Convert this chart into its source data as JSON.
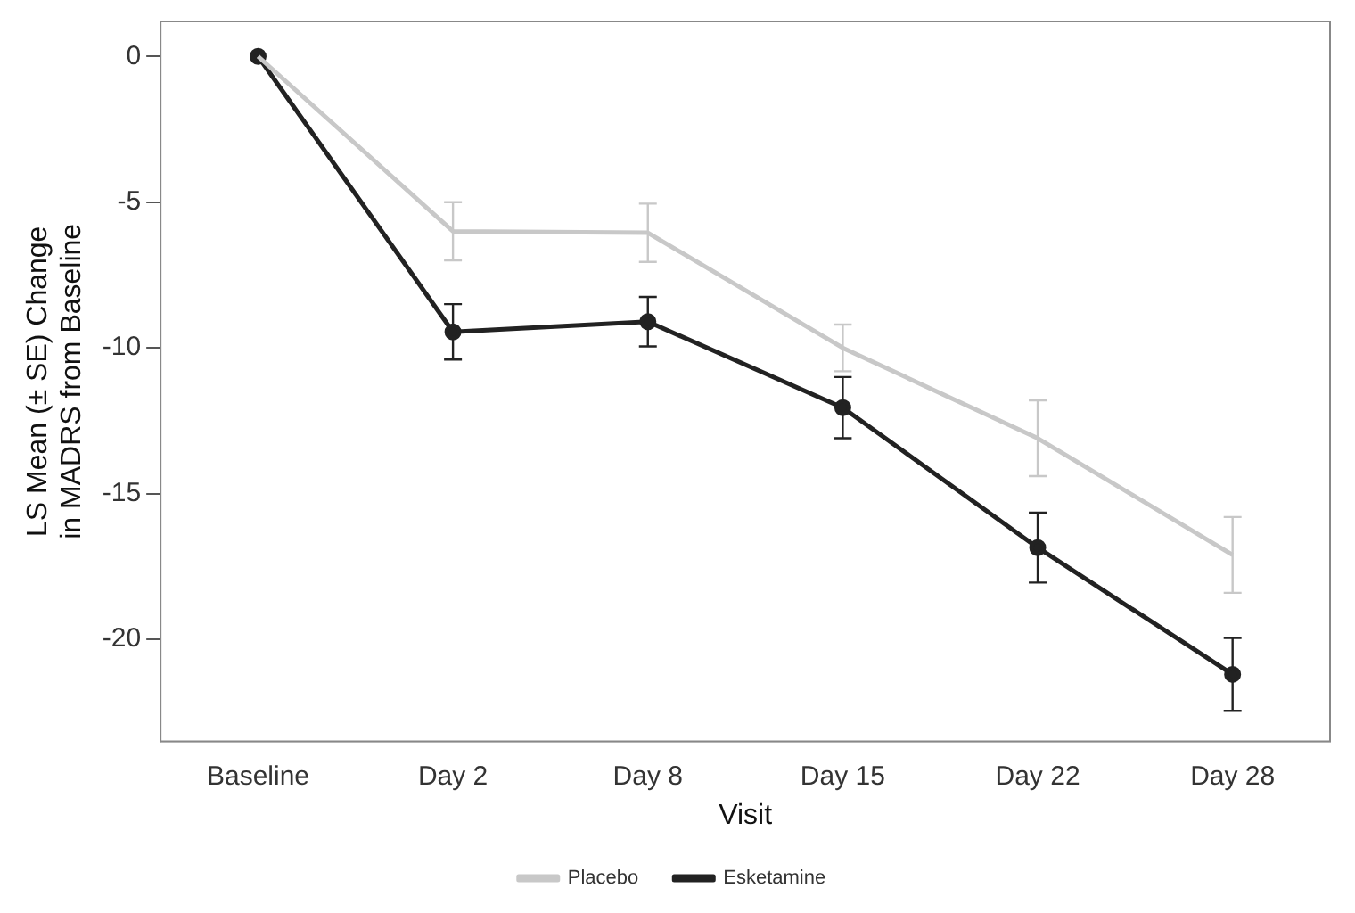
{
  "chart_data": {
    "type": "line",
    "xlabel": "Visit",
    "ylabel": "LS Mean (± SE) Change\nin MADRS from Baseline",
    "categories": [
      "Baseline",
      "Day 2",
      "Day 8",
      "Day 15",
      "Day 22",
      "Day 28"
    ],
    "series": [
      {
        "name": "Placebo",
        "color": "#c8c8c8",
        "marker": "none",
        "values": [
          0,
          -6.0,
          -6.05,
          -10.0,
          -13.1,
          -17.1
        ],
        "errors": [
          null,
          1.0,
          1.0,
          0.8,
          1.3,
          1.3
        ]
      },
      {
        "name": "Esketamine",
        "color": "#222222",
        "marker": "circle",
        "values": [
          0,
          -9.45,
          -9.1,
          -12.05,
          -16.85,
          -21.2
        ],
        "errors": [
          null,
          0.95,
          0.85,
          1.05,
          1.2,
          1.25
        ]
      }
    ],
    "ylim": [
      -23.5,
      1.2
    ],
    "yticks": [
      0,
      -5,
      -10,
      -15,
      -20
    ],
    "grid": false,
    "legend": "bottom",
    "line_style": "solid"
  }
}
